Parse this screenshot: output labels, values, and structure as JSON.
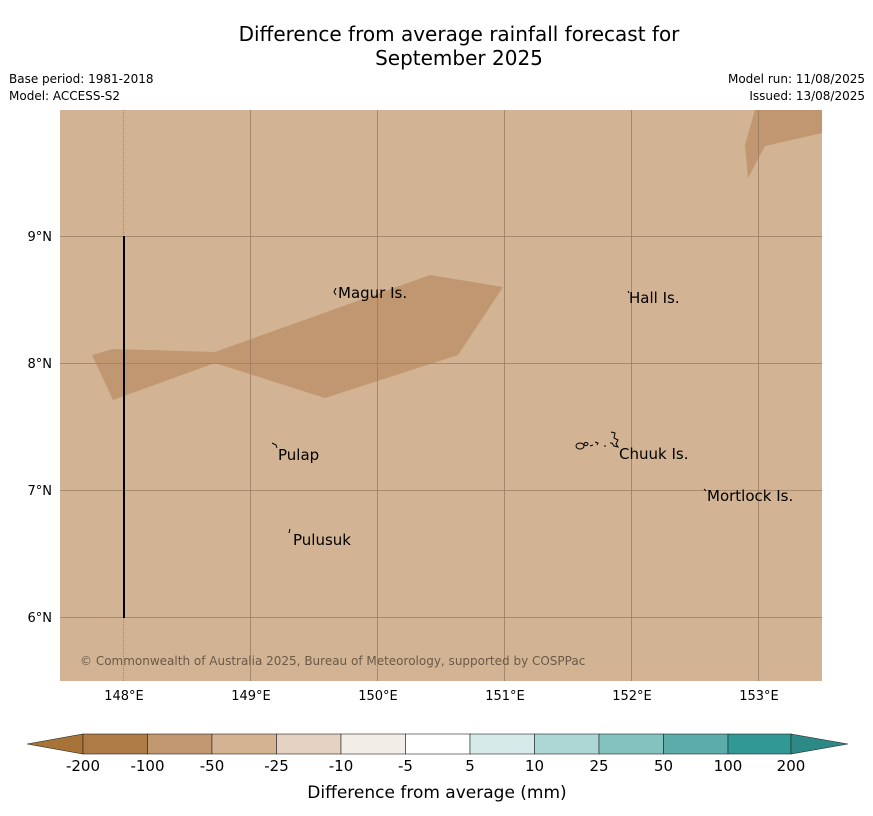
{
  "title": {
    "line1": "Difference from average rainfall forecast for",
    "line2": "September 2025"
  },
  "meta": {
    "base_period": "Base period: 1981-2018",
    "model": "Model: ACCESS-S2",
    "model_run": "Model run: 11/08/2025",
    "issued": "Issued: 13/08/2025"
  },
  "map": {
    "lon_labels": [
      "148°E",
      "149°E",
      "150°E",
      "151°E",
      "152°E",
      "153°E"
    ],
    "lat_labels": [
      "9°N",
      "8°N",
      "7°N",
      "6°N"
    ],
    "places": [
      "Magur Is.",
      "Hall Is.",
      "Pulap",
      "Chuuk Is.",
      "Mortlock Is.",
      "Pulusuk"
    ],
    "copyright": "© Commonwealth of Australia 2025, Bureau of Meteorology, supported by COSPPac",
    "colors": {
      "background": "#d2b393",
      "anomaly_zone": "#c09770",
      "land": "#000000"
    }
  },
  "colorbar": {
    "title": "Difference from average (mm)",
    "labels": [
      "-200",
      "-100",
      "-50",
      "-25",
      "-10",
      "-5",
      "5",
      "10",
      "25",
      "50",
      "100",
      "200"
    ],
    "colors": [
      "#a87339",
      "#ae7a46",
      "#c09770",
      "#d4b393",
      "#e4d1c1",
      "#f2ede7",
      "#ffffff",
      "#d6ebe9",
      "#acd7d5",
      "#83c2bf",
      "#5cadaa",
      "#329896",
      "#2d8986"
    ]
  }
}
